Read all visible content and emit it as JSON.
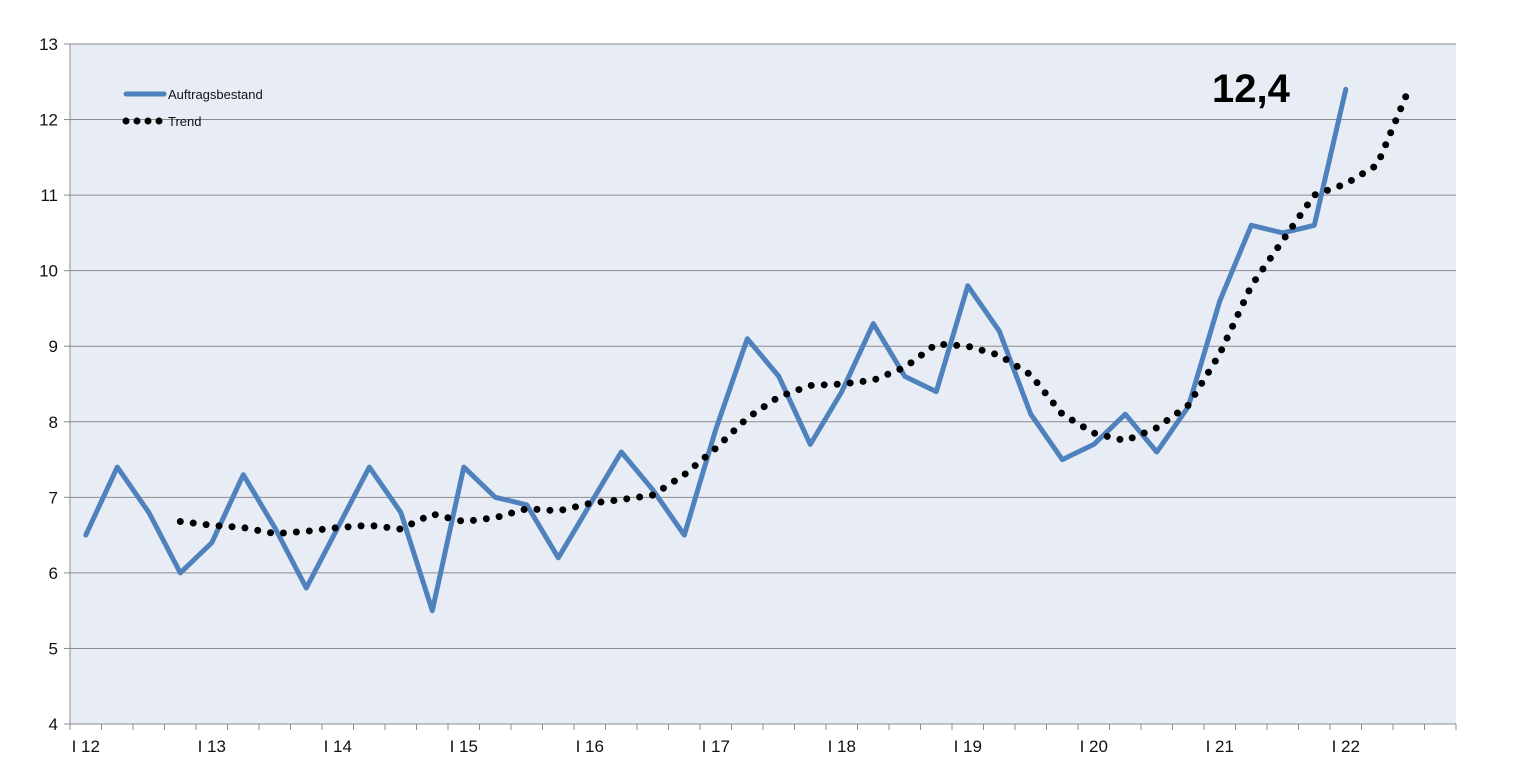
{
  "chart_data": {
    "type": "line",
    "title": "",
    "xlabel": "",
    "ylabel": "",
    "ylim": [
      4,
      13
    ],
    "y_ticks": [
      4,
      5,
      6,
      7,
      8,
      9,
      10,
      11,
      12,
      13
    ],
    "x_tick_labels": [
      "I 12",
      "I 13",
      "I 14",
      "I 15",
      "I 16",
      "I 17",
      "I 18",
      "I 19",
      "I 20",
      "I 21",
      "I 22"
    ],
    "quarters_per_year": 4,
    "grid": true,
    "background_color": "#E8EDF5",
    "legend_position": "top-left",
    "annotation": "12,4",
    "series": [
      {
        "name": "Auftragsbestand",
        "style": "solid",
        "color": "#4F81BD",
        "start_quarter": 0,
        "values": [
          6.5,
          7.4,
          6.8,
          6.0,
          6.4,
          7.3,
          6.6,
          5.8,
          6.6,
          7.4,
          6.8,
          5.5,
          7.4,
          7.0,
          6.9,
          6.2,
          6.9,
          7.6,
          7.1,
          6.5,
          7.9,
          9.1,
          8.6,
          7.7,
          8.4,
          9.3,
          8.6,
          8.4,
          9.8,
          9.2,
          8.1,
          7.5,
          7.7,
          8.1,
          7.6,
          8.2,
          9.6,
          10.6,
          10.5,
          10.6,
          12.4
        ]
      },
      {
        "name": "Trend",
        "style": "dotted",
        "color": "#000000",
        "start_quarter": 3,
        "values": [
          6.68,
          6.63,
          6.6,
          6.52,
          6.55,
          6.6,
          6.63,
          6.58,
          6.78,
          6.68,
          6.73,
          6.85,
          6.82,
          6.92,
          6.97,
          7.03,
          7.3,
          7.65,
          8.05,
          8.33,
          8.48,
          8.5,
          8.55,
          8.72,
          9.03,
          9.0,
          8.88,
          8.62,
          8.1,
          7.85,
          7.75,
          7.92,
          8.22,
          8.9,
          9.8,
          10.4,
          11.0,
          11.15,
          11.4,
          12.4
        ]
      }
    ]
  }
}
